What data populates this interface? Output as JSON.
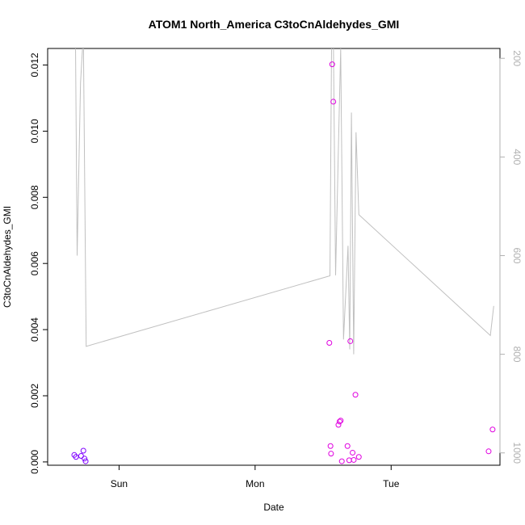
{
  "chart_data": {
    "type": "scatter",
    "title": "ATOM1 North_America C3toCnAldehydes_GMI",
    "xlabel": "Date",
    "ylabel": "C3toCnAldehydes_GMI",
    "x_ticks": [
      {
        "label": "Sun",
        "value": 0
      },
      {
        "label": "Mon",
        "value": 24
      },
      {
        "label": "Tue",
        "value": 48
      }
    ],
    "xlim": [
      -12.6,
      67.2
    ],
    "ylim": [
      -0.0001,
      0.0125
    ],
    "y_ticks": [
      0.0,
      0.002,
      0.004,
      0.006,
      0.008,
      0.01,
      0.012
    ],
    "y_tick_labels": [
      "0.000",
      "0.002",
      "0.004",
      "0.006",
      "0.008",
      "0.010",
      "0.012"
    ],
    "y2_ticks": [
      200,
      400,
      600,
      800,
      1000
    ],
    "y2_tick_labels": [
      "200",
      "400",
      "600",
      "800",
      "1000"
    ],
    "y2lim": [
      1025,
      180
    ],
    "y2_reversed": true,
    "grid": false,
    "series": [
      {
        "type": "scatter",
        "color": "#7f00ff",
        "points": [
          {
            "x": -7.9,
            "y": 0.00021
          },
          {
            "x": -7.6,
            "y": 0.00015
          },
          {
            "x": -6.7,
            "y": 0.00018
          },
          {
            "x": -6.3,
            "y": 0.00034
          },
          {
            "x": -6.1,
            "y": 0.0001
          },
          {
            "x": -5.9,
            "y": 2e-05
          }
        ]
      },
      {
        "type": "scatter",
        "color": "#e000e0",
        "points": [
          {
            "x": 37.1,
            "y": 0.0036
          },
          {
            "x": 37.3,
            "y": 0.00048
          },
          {
            "x": 37.4,
            "y": 0.00025
          },
          {
            "x": 37.6,
            "y": 0.01202
          },
          {
            "x": 37.8,
            "y": 0.01089
          },
          {
            "x": 38.7,
            "y": 0.00112
          },
          {
            "x": 38.9,
            "y": 0.00122
          },
          {
            "x": 39.1,
            "y": 0.00125
          },
          {
            "x": 39.3,
            "y": 2e-05
          },
          {
            "x": 40.3,
            "y": 0.00048
          },
          {
            "x": 40.6,
            "y": 5e-05
          },
          {
            "x": 40.8,
            "y": 0.00365
          },
          {
            "x": 41.2,
            "y": 0.00028
          },
          {
            "x": 41.4,
            "y": 6e-05
          },
          {
            "x": 41.7,
            "y": 0.00203
          },
          {
            "x": 42.3,
            "y": 0.00015
          },
          {
            "x": 65.2,
            "y": 0.00032
          },
          {
            "x": 65.9,
            "y": 0.00098
          }
        ]
      },
      {
        "type": "line",
        "color": "#c0c0c0",
        "axis": "right",
        "points": [
          {
            "x": -7.7,
            "y": 150
          },
          {
            "x": -7.4,
            "y": 600
          },
          {
            "x": -6.8,
            "y": 250
          },
          {
            "x": -6.3,
            "y": 150
          },
          {
            "x": -5.8,
            "y": 784
          },
          {
            "x": 37.2,
            "y": 641
          },
          {
            "x": 37.5,
            "y": 150
          },
          {
            "x": 37.8,
            "y": 150
          },
          {
            "x": 38.2,
            "y": 640
          },
          {
            "x": 38.7,
            "y": 380
          },
          {
            "x": 39.1,
            "y": 180
          },
          {
            "x": 39.6,
            "y": 770
          },
          {
            "x": 40.4,
            "y": 580
          },
          {
            "x": 40.7,
            "y": 790
          },
          {
            "x": 41.0,
            "y": 310
          },
          {
            "x": 41.4,
            "y": 800
          },
          {
            "x": 41.8,
            "y": 350
          },
          {
            "x": 42.3,
            "y": 517
          },
          {
            "x": 65.5,
            "y": 762
          },
          {
            "x": 66.1,
            "y": 702
          }
        ]
      }
    ]
  }
}
